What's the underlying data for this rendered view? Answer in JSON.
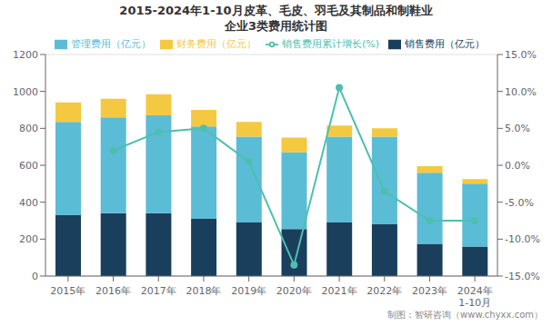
{
  "chart_data": {
    "type": "bar",
    "title": "2015-2024年1-10月皮革、毛皮、羽毛及其制品和制鞋业",
    "subtitle": "企业3类费用统计图",
    "annotations": [
      "制图：智研咨询（www.chyxx.com）"
    ],
    "categories": [
      "2015年",
      "2016年",
      "2017年",
      "2018年",
      "2019年",
      "2020年",
      "2021年",
      "2022年",
      "2023年",
      "2024年\n1-10月"
    ],
    "series": [
      {
        "name": "销售费用（亿元）",
        "color": "#1a3f5c",
        "values": [
          330,
          340,
          340,
          310,
          290,
          255,
          290,
          280,
          175,
          160
        ]
      },
      {
        "name": "管理费用（亿元）",
        "color": "#5bbcd6",
        "values": [
          505,
          520,
          530,
          500,
          465,
          415,
          465,
          475,
          385,
          340
        ]
      },
      {
        "name": "财务费用（亿元）",
        "color": "#f5c842",
        "values": [
          105,
          100,
          115,
          90,
          80,
          80,
          60,
          45,
          35,
          25
        ]
      },
      {
        "name": "销售费用累计增长(%)",
        "type": "line",
        "axis": "y2",
        "marker": "circle",
        "color": "#4dbfb0",
        "values": [
          null,
          2.0,
          4.5,
          5.0,
          0.5,
          -13.5,
          10.5,
          -3.5,
          -7.5,
          -7.5
        ]
      }
    ],
    "stacked": true,
    "ylim": [
      0,
      1200
    ],
    "yticks": [
      0,
      200,
      400,
      600,
      800,
      1000,
      1200
    ],
    "y2lim": [
      -15.0,
      15.0
    ],
    "y2ticks": [
      {
        "value": -15.0,
        "label": "-15.0%"
      },
      {
        "value": -10.0,
        "label": "-10.0%"
      },
      {
        "value": -5.0,
        "label": "-5.0%"
      },
      {
        "value": 0.0,
        "label": "0.0%"
      },
      {
        "value": 5.0,
        "label": "5.0%"
      },
      {
        "value": 10.0,
        "label": "10.0%"
      },
      {
        "value": 15.0,
        "label": "15.0%"
      }
    ],
    "grid": true,
    "legend": "top"
  }
}
